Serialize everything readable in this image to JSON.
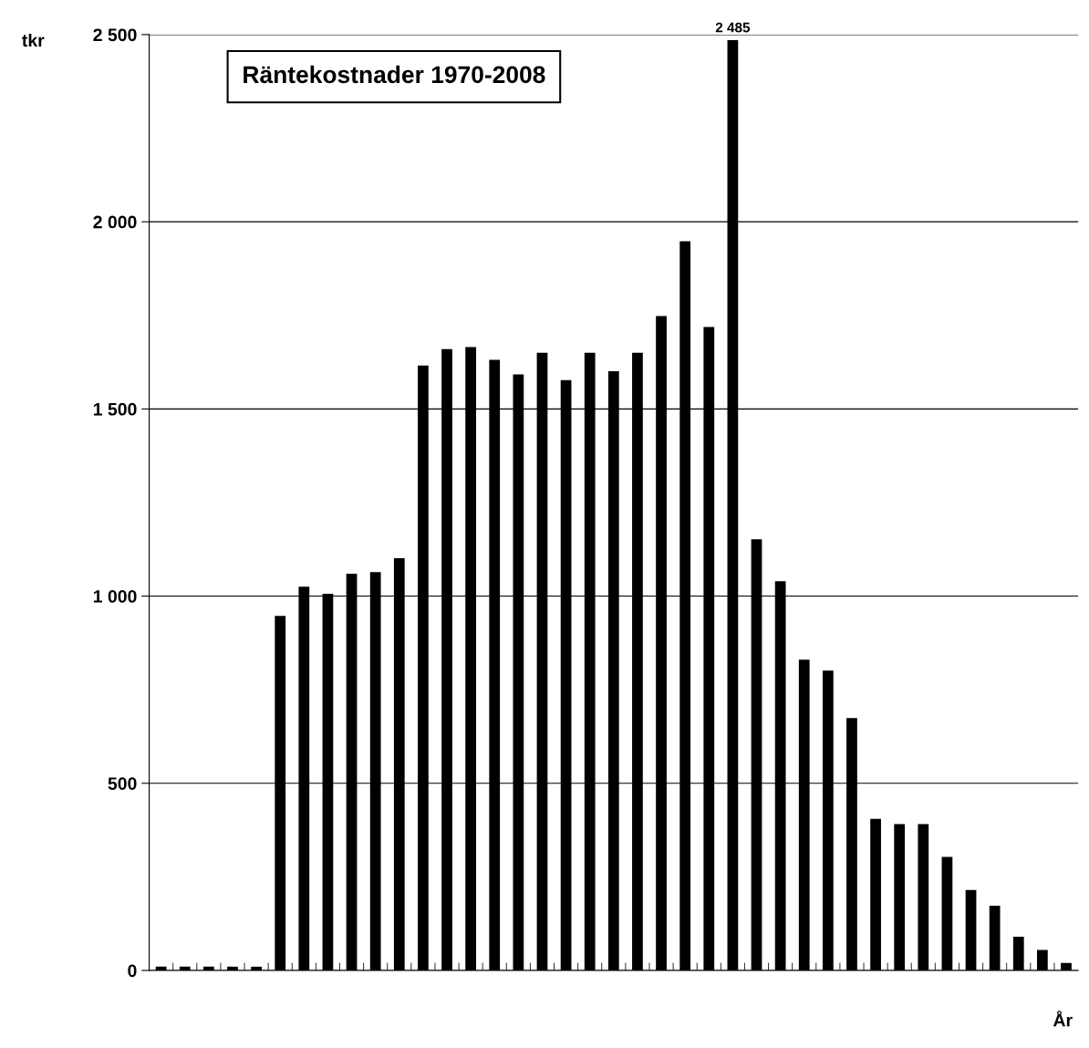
{
  "chart_data": {
    "type": "bar",
    "title": "Räntekostnader 1970-2008",
    "ylabel": "tkr",
    "xlabel": "År",
    "categories": [
      null,
      null,
      null,
      null,
      null,
      null,
      null,
      null,
      null,
      null,
      null,
      null,
      null,
      null,
      null,
      null,
      null,
      null,
      null,
      null,
      null,
      null,
      null,
      null,
      null,
      null,
      null,
      null,
      null,
      null,
      null,
      null,
      null,
      null,
      null,
      null,
      null,
      null,
      null
    ],
    "values": [
      10,
      10,
      10,
      10,
      10,
      947,
      1025,
      1006,
      1060,
      1064,
      1101,
      1616,
      1660,
      1665,
      1631,
      1592,
      1650,
      1577,
      1650,
      1601,
      1650,
      1748,
      1948,
      1719,
      2485,
      1152,
      1040,
      830,
      801,
      674,
      405,
      391,
      391,
      303,
      215,
      173,
      90,
      55,
      20
    ],
    "value_labels": [
      null,
      null,
      null,
      null,
      null,
      null,
      null,
      null,
      null,
      null,
      null,
      null,
      null,
      null,
      null,
      null,
      null,
      null,
      null,
      null,
      null,
      null,
      null,
      null,
      "2 485",
      null,
      null,
      null,
      null,
      null,
      null,
      null,
      null,
      null,
      null,
      null,
      null,
      null,
      null
    ],
    "color": "#000000",
    "ylim": [
      0,
      2500
    ],
    "yticks": [
      {
        "value": 0,
        "label": "0"
      },
      {
        "value": 500,
        "label": "500"
      },
      {
        "value": 1000,
        "label": "1 000"
      },
      {
        "value": 1500,
        "label": "1 500"
      },
      {
        "value": 2000,
        "label": "2 000"
      },
      {
        "value": 2500,
        "label": "2 500"
      }
    ],
    "grid": "y"
  }
}
